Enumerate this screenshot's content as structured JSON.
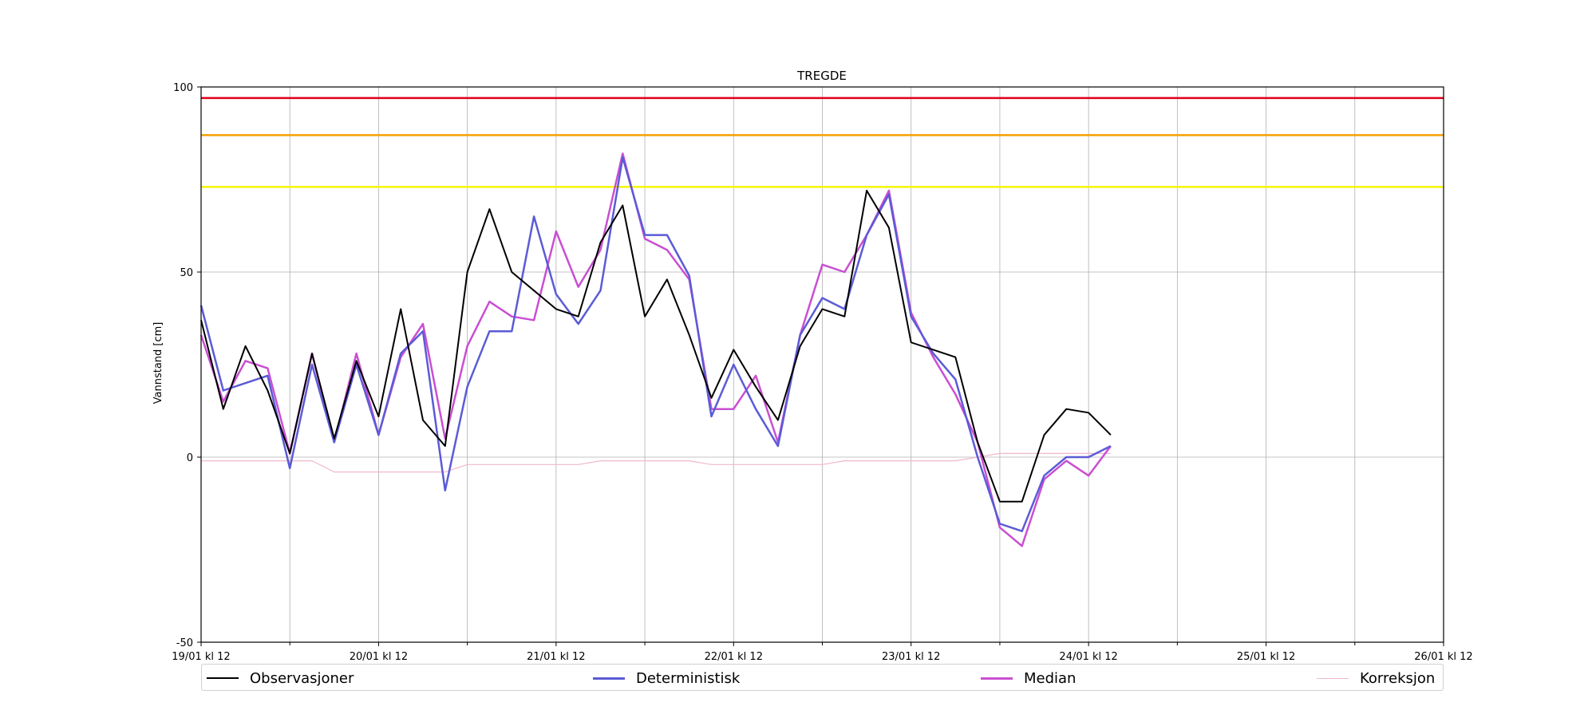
{
  "chart_data": {
    "type": "line",
    "title": "TREGDE",
    "ylabel": "Vannstand [cm]",
    "ylim": [
      -50,
      100
    ],
    "xlim": [
      0,
      168
    ],
    "x_step_hours": 3,
    "yticks": [
      -50,
      0,
      50,
      100
    ],
    "xticks": [
      {
        "x": 0,
        "label": "19/01 kl 12"
      },
      {
        "x": 24,
        "label": "20/01 kl 12"
      },
      {
        "x": 48,
        "label": "21/01 kl 12"
      },
      {
        "x": 72,
        "label": "22/01 kl 12"
      },
      {
        "x": 96,
        "label": "23/01 kl 12"
      },
      {
        "x": 120,
        "label": "24/01 kl 12"
      },
      {
        "x": 144,
        "label": "25/01 kl 12"
      },
      {
        "x": 168,
        "label": "26/01 kl 12"
      }
    ],
    "minor_xticks": [
      12,
      36,
      60,
      84,
      108,
      132,
      156
    ],
    "grid": true,
    "thresholds": [
      {
        "value": 97,
        "color": "#e0001a"
      },
      {
        "value": 87,
        "color": "#f5a000"
      },
      {
        "value": 73,
        "color": "#f5f500"
      }
    ],
    "series": [
      {
        "name": "Observasjoner",
        "color": "#000000",
        "values": [
          37,
          13,
          30,
          18,
          1,
          28,
          5,
          26,
          11,
          40,
          10,
          3,
          50,
          67,
          50,
          45,
          40,
          38,
          58,
          68,
          38,
          48,
          33,
          16,
          29,
          19,
          10,
          30,
          40,
          38,
          72,
          62,
          31,
          29,
          27,
          4,
          -12,
          -12,
          6,
          13,
          12,
          6
        ]
      },
      {
        "name": "Deterministisk",
        "color": "#5b5bd6",
        "values": [
          41,
          18,
          20,
          22,
          -3,
          25,
          4,
          25,
          6,
          28,
          34,
          -9,
          19,
          34,
          34,
          65,
          44,
          36,
          45,
          81,
          60,
          60,
          49,
          11,
          25,
          13,
          3,
          33,
          43,
          40,
          60,
          71,
          38,
          28,
          21,
          0,
          -18,
          -20,
          -5,
          0,
          0,
          3
        ]
      },
      {
        "name": "Median",
        "color": "#c94fd2",
        "values": [
          33,
          15,
          26,
          24,
          1,
          28,
          4,
          28,
          6,
          27,
          36,
          5,
          30,
          42,
          38,
          37,
          61,
          46,
          56,
          82,
          59,
          56,
          48,
          13,
          13,
          22,
          4,
          33,
          52,
          50,
          60,
          72,
          39,
          27,
          17,
          4,
          -19,
          -24,
          -6,
          -1,
          -5,
          3
        ]
      },
      {
        "name": "Korreksjon",
        "color": "#f0b8cc",
        "values": [
          -1,
          -1,
          -1,
          -1,
          -1,
          -1,
          -4,
          -4,
          -4,
          -4,
          -4,
          -4,
          -2,
          -2,
          -2,
          -2,
          -2,
          -2,
          -1,
          -1,
          -1,
          -1,
          -1,
          -2,
          -2,
          -2,
          -2,
          -2,
          -2,
          -1,
          -1,
          -1,
          -1,
          -1,
          -1,
          0,
          1,
          1,
          1,
          1,
          1,
          1
        ]
      }
    ]
  }
}
